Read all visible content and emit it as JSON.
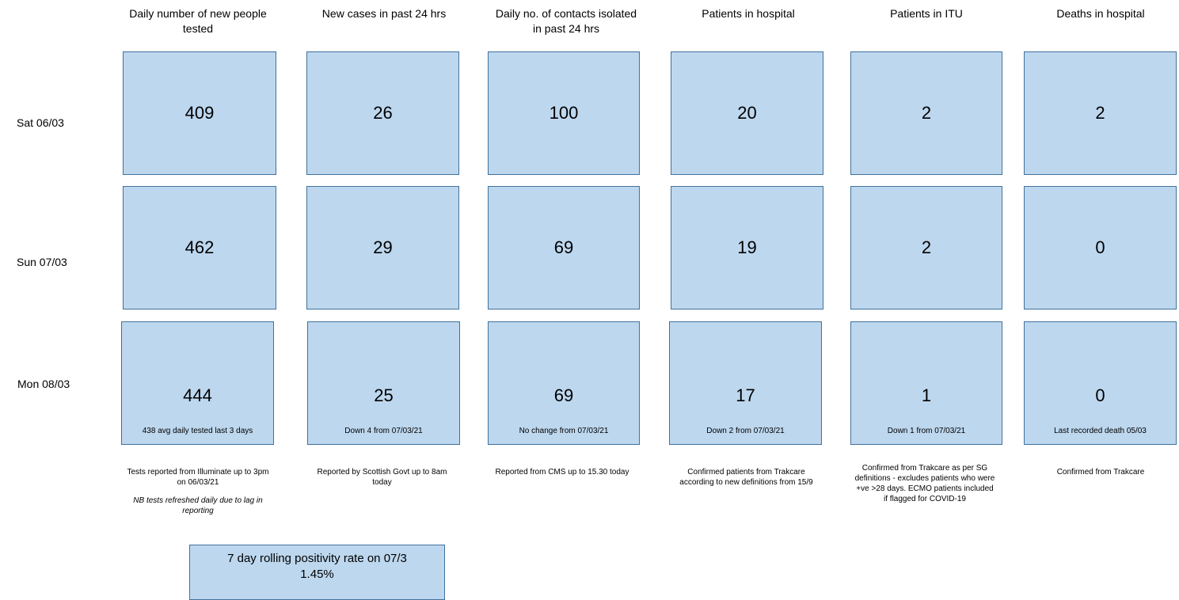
{
  "columns": [
    {
      "title": "Daily number of new people tested"
    },
    {
      "title": "New cases in past 24 hrs"
    },
    {
      "title": "Daily no. of contacts isolated in past 24 hrs"
    },
    {
      "title": "Patients in hospital"
    },
    {
      "title": "Patients in ITU"
    },
    {
      "title": "Deaths in hospital"
    }
  ],
  "rows": [
    {
      "label": "Sat 06/03",
      "values": [
        "409",
        "26",
        "100",
        "20",
        "2",
        "2"
      ]
    },
    {
      "label": "Sun 07/03",
      "values": [
        "462",
        "29",
        "69",
        "19",
        "2",
        "0"
      ]
    },
    {
      "label": "Mon 08/03",
      "values": [
        "444",
        "25",
        "69",
        "17",
        "1",
        "0"
      ],
      "notes": [
        "438 avg daily tested last 3 days",
        "Down 4 from 07/03/21",
        "No change from 07/03/21",
        "Down 2 from 07/03/21",
        "Down 1 from 07/03/21",
        "Last recorded death 05/03"
      ]
    }
  ],
  "footnotes": [
    {
      "text": "Tests reported from Illuminate up to 3pm on 06/03/21",
      "extra": "NB tests refreshed daily due to lag in reporting"
    },
    {
      "text": "Reported by Scottish Govt up to 8am today"
    },
    {
      "text": "Reported from CMS up to 15.30 today"
    },
    {
      "text": "Confirmed patients from Trakcare according to new definitions from 15/9"
    },
    {
      "text": "Confirmed from Trakcare as per SG definitions - excludes patients who were +ve >28 days. ECMO patients included if flagged for COVID-19"
    },
    {
      "text": "Confirmed from Trakcare"
    }
  ],
  "positivity": {
    "line1": "7 day rolling positivity rate on 07/3",
    "line2": "1.45%"
  },
  "colors": {
    "box_fill": "#bdd7ee",
    "box_border": "#41719c"
  }
}
